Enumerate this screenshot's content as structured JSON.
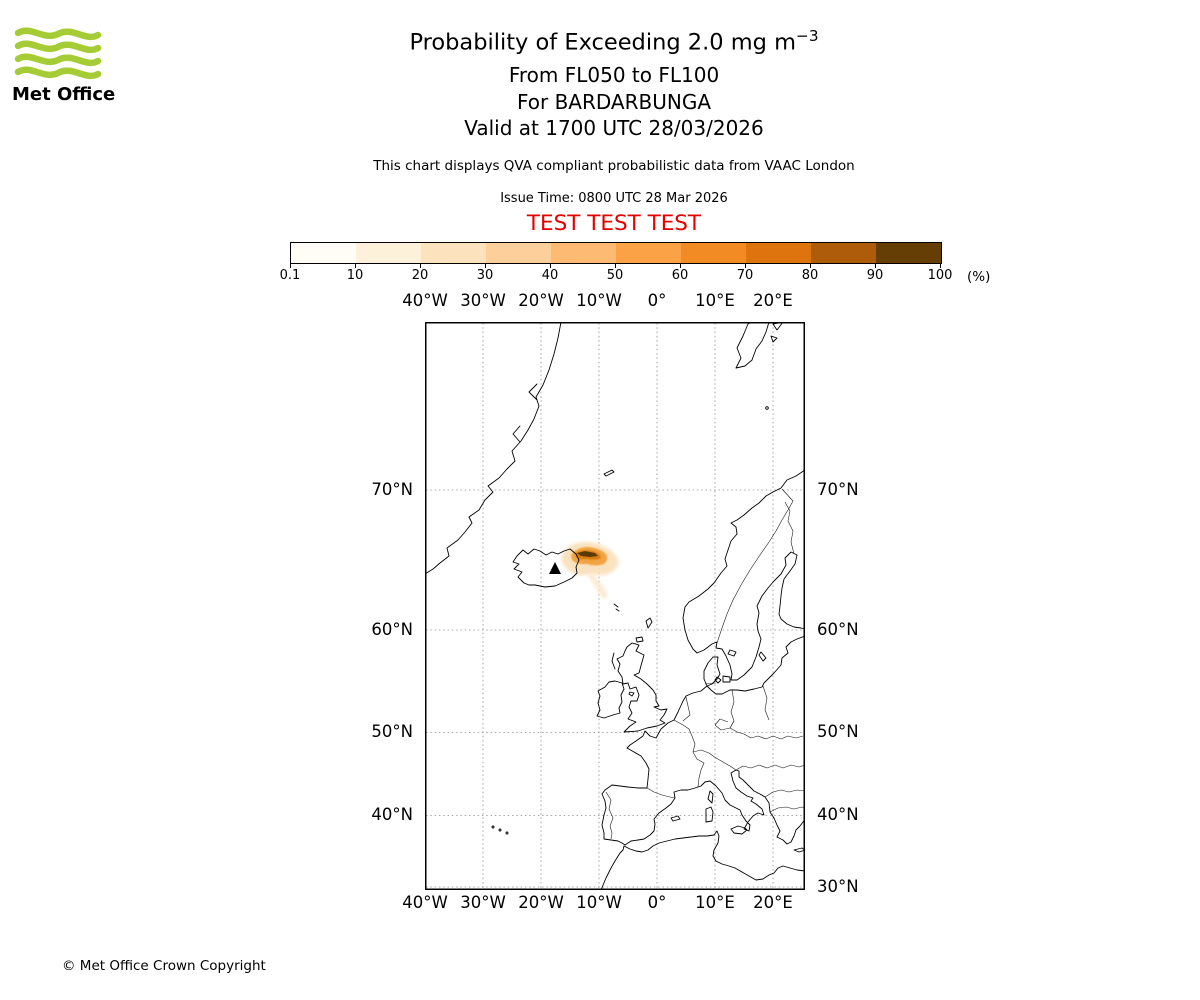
{
  "colors": {
    "met_office_green": "#a6cc35",
    "test_red": "#e60000",
    "coastline": "#000000",
    "gridline": "#8c8c8c"
  },
  "logo": {
    "label": "Met Office"
  },
  "header": {
    "title_prefix": "Probability of Exceeding 2.0 mg m",
    "title_sup": "−3",
    "subtitle_flight_levels": "From FL050 to FL100",
    "subtitle_volcano": "For BARDARBUNGA",
    "subtitle_valid": "Valid at 1700 UTC 28/03/2026",
    "disclaimer": "This chart displays QVA compliant probabilistic data from VAAC London",
    "issue_time": "Issue Time: 0800 UTC 28 Mar 2026",
    "test_banner": "TEST TEST TEST"
  },
  "colorbar": {
    "ticks": [
      "0.1",
      "10",
      "20",
      "30",
      "40",
      "50",
      "60",
      "70",
      "80",
      "90",
      "100"
    ],
    "unit": "(%)",
    "colors": [
      "#fffdf5",
      "#fdf1d9",
      "#fce3bd",
      "#fccf9b",
      "#fcba72",
      "#fba146",
      "#f28b24",
      "#dd740e",
      "#ae5c09",
      "#653e06"
    ]
  },
  "map": {
    "lon_labels": [
      "40°W",
      "30°W",
      "20°W",
      "10°W",
      "0°",
      "10°E",
      "20°E"
    ],
    "lat_labels_left": [
      "70°N",
      "60°N",
      "50°N",
      "40°N"
    ],
    "lat_labels_right": [
      "70°N",
      "60°N",
      "50°N",
      "40°N",
      "30°N"
    ],
    "volcano_name": "BARDARBUNGA"
  },
  "footer": {
    "copyright": "© Met Office Crown Copyright"
  }
}
